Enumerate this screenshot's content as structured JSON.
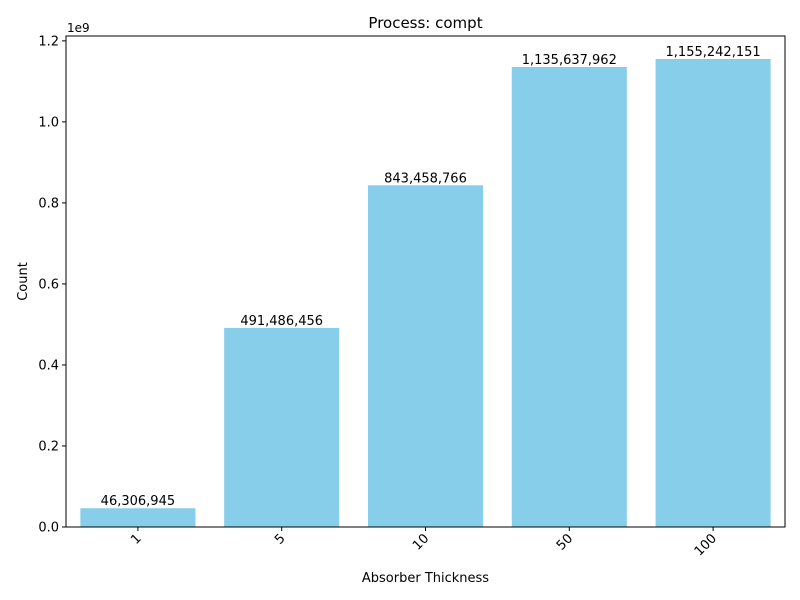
{
  "chart_data": {
    "type": "bar",
    "title": "Process: compt",
    "xlabel": "Absorber Thickness",
    "ylabel": "Count",
    "categories": [
      "1",
      "5",
      "10",
      "50",
      "100"
    ],
    "values": [
      46306945,
      491486456,
      843458766,
      1135637962,
      1155242151
    ],
    "value_labels": [
      "46,306,945",
      "491,486,456",
      "843,458,766",
      "1,135,637,962",
      "1,155,242,151"
    ],
    "ylim": [
      0,
      1212004361
    ],
    "y_offset_label": "1e9",
    "y_ticks": [
      0,
      200000000,
      400000000,
      600000000,
      800000000,
      1000000000,
      1200000000
    ],
    "y_tick_labels": [
      "0.0",
      "0.2",
      "0.4",
      "0.6",
      "0.8",
      "1.0",
      "1.2"
    ],
    "bar_color": "#87CEEB",
    "grid": false,
    "legend": "none"
  }
}
